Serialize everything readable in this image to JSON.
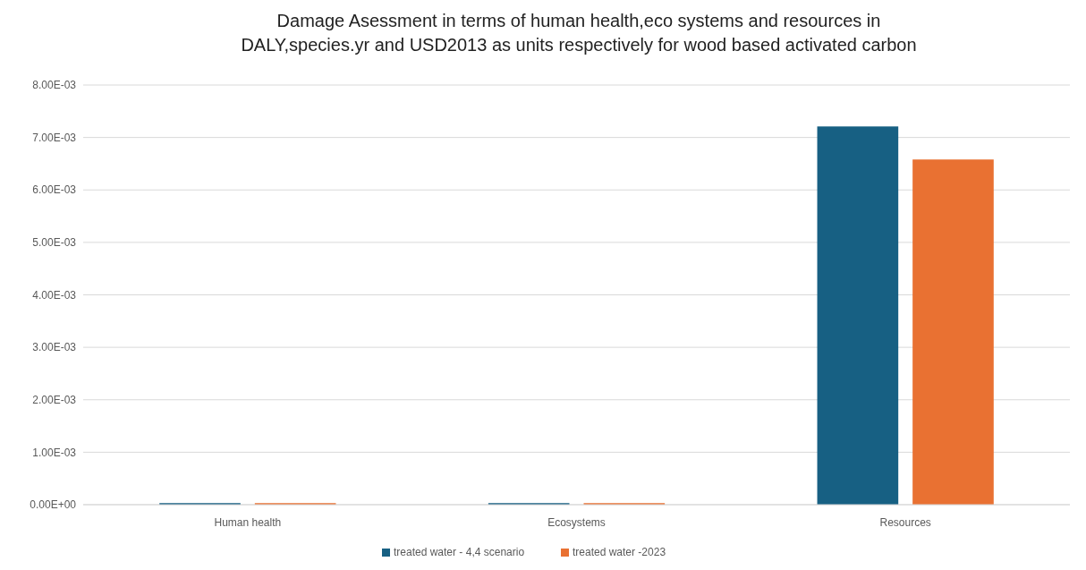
{
  "chart_data": {
    "type": "bar",
    "title": "Damage Asessment in terms of human health,eco systems and resources  in\nDALY,species.yr and USD2013 as units respectively for wood based  activated carbon",
    "categories": [
      "Human health",
      "Ecosystems",
      "Resources"
    ],
    "series": [
      {
        "name": "treated water - 4,4 scenario",
        "color": "#176083",
        "values": [
          3e-05,
          3e-05,
          0.00721
        ]
      },
      {
        "name": "treated water -2023",
        "color": "#e97132",
        "values": [
          3e-05,
          3e-05,
          0.00658
        ]
      }
    ],
    "ylim": [
      0,
      0.008
    ],
    "yticks": [
      {
        "value": 0,
        "label": "0.00E+00"
      },
      {
        "value": 0.001,
        "label": "1.00E-03"
      },
      {
        "value": 0.002,
        "label": "2.00E-03"
      },
      {
        "value": 0.003,
        "label": "3.00E-03"
      },
      {
        "value": 0.004,
        "label": "4.00E-03"
      },
      {
        "value": 0.005,
        "label": "5.00E-03"
      },
      {
        "value": 0.006,
        "label": "6.00E-03"
      },
      {
        "value": 0.007,
        "label": "7.00E-03"
      },
      {
        "value": 0.008,
        "label": "8.00E-03"
      }
    ],
    "grid": "y",
    "legend": "bottom"
  }
}
